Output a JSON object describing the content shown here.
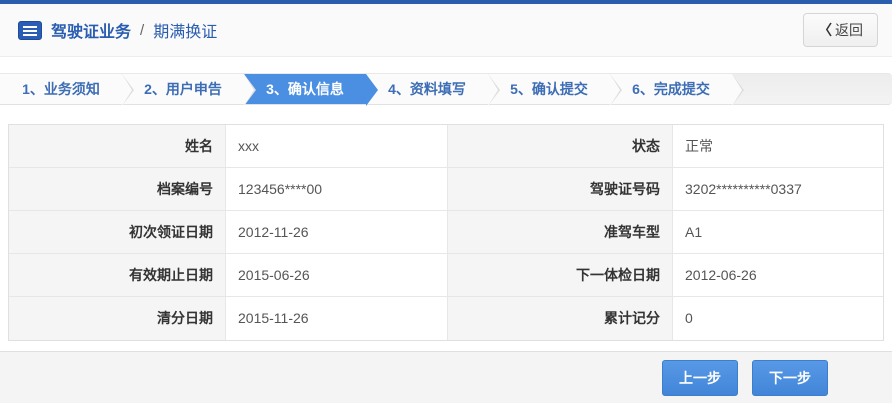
{
  "header": {
    "breadcrumb_primary": "驾驶证业务",
    "breadcrumb_separator": "/",
    "breadcrumb_secondary": "期满换证",
    "back_chevron": "〈",
    "back_label": "返回"
  },
  "wizard": {
    "active_step_label": "3、确认信息",
    "steps": [
      {
        "label": "1、业务须知"
      },
      {
        "label": "2、用户申告"
      },
      {
        "label": "3、确认信息"
      },
      {
        "label": "4、资料填写"
      },
      {
        "label": "5、确认提交"
      },
      {
        "label": "6、完成提交"
      }
    ]
  },
  "form": {
    "rows": [
      {
        "label1": "姓名",
        "value1": "xxx",
        "label2": "状态",
        "value2": "正常"
      },
      {
        "label1": "档案编号",
        "value1": "123456****00",
        "label2": "驾驶证号码",
        "value2": "3202**********0337"
      },
      {
        "label1": "初次领证日期",
        "value1": "2012-11-26",
        "label2": "准驾车型",
        "value2": "A1"
      },
      {
        "label1": "有效期止日期",
        "value1": "2015-06-26",
        "label2": "下一体检日期",
        "value2": "2012-06-26"
      },
      {
        "label1": "清分日期",
        "value1": "2015-11-26",
        "label2": "累计记分",
        "value2": "0"
      }
    ]
  },
  "footer": {
    "prev_label": "上一步",
    "next_label": "下一步"
  },
  "colors": {
    "top_bar": "#2b5fad",
    "title_blue": "#2a5db0",
    "active_step_blue": "#4a8fe2",
    "button_blue": "#4285d8",
    "label_cell_bg": "#f5f5f5"
  }
}
